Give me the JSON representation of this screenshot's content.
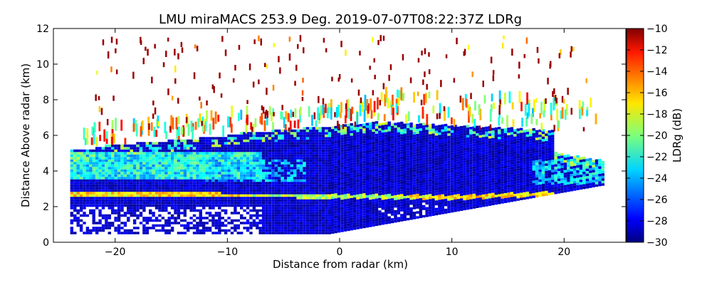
{
  "chart_data": {
    "type": "heatmap",
    "title": "LMU miraMACS 253.9 Deg. 2019-07-07T08:22:37Z  LDRg",
    "xlabel": "Distance from radar (km)",
    "ylabel": "Distance Above radar  (km)",
    "xlim": [
      -25.5,
      25.5
    ],
    "ylim": [
      0,
      12
    ],
    "x_ticks": [
      -20,
      -10,
      0,
      10,
      20
    ],
    "x_tick_labels": [
      "−20",
      "−10",
      "0",
      "10",
      "20"
    ],
    "y_ticks": [
      0,
      2,
      4,
      6,
      8,
      10,
      12
    ],
    "y_tick_labels": [
      "0",
      "2",
      "4",
      "6",
      "8",
      "10",
      "12"
    ],
    "grid": false,
    "colorbar": {
      "label": "LDRg (dB)",
      "range": [
        -30,
        -10
      ],
      "colormap": "jet",
      "ticks": [
        -30,
        -28,
        -26,
        -24,
        -22,
        -20,
        -18,
        -16,
        -14,
        -12,
        -10
      ],
      "tick_labels": [
        "−30",
        "−28",
        "−26",
        "−24",
        "−22",
        "−20",
        "−18",
        "−16",
        "−14",
        "−12",
        "−10"
      ]
    },
    "features": [
      {
        "region": "lower cloud layer",
        "x_range": [
          -24,
          23.5
        ],
        "height_km": [
          0.5,
          2.6
        ],
        "ldr_db": -30
      },
      {
        "region": "melting layer (bright band)",
        "x_range": [
          -24,
          18
        ],
        "height_km": [
          2.3,
          2.8
        ],
        "ldr_db": -18
      },
      {
        "region": "main cloud body",
        "x_range": [
          -24,
          23.5
        ],
        "height_km": [
          2.8,
          6.5
        ],
        "ldr_db": -29
      },
      {
        "region": "upper cloud (left)",
        "x_range": [
          -23,
          -8
        ],
        "height_km": [
          3.5,
          5.0
        ],
        "ldr_db": -23
      },
      {
        "region": "cloud top speckle",
        "x_range": [
          -24,
          23
        ],
        "height_km": [
          5.5,
          8.5
        ],
        "ldr_db": -18
      },
      {
        "region": "high-altitude noise",
        "x_range": [
          -22,
          22
        ],
        "height_km": [
          6.0,
          11.5
        ],
        "ldr_db": -10
      }
    ]
  }
}
